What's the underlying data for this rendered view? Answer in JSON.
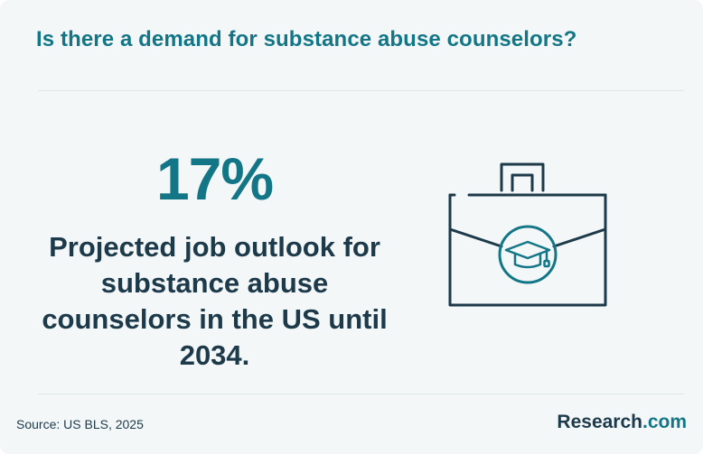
{
  "header": {
    "title": "Is there a demand for substance abuse counselors?"
  },
  "stat": {
    "value": "17%",
    "description": "Projected job outlook for substance abuse counselors in the US until 2034."
  },
  "illustration": {
    "icon": "briefcase-graduation-cap-icon"
  },
  "footer": {
    "source": "Source: US BLS, 2025",
    "logo_name": "Research",
    "logo_tld": ".com"
  },
  "colors": {
    "accent": "#137686",
    "dark": "#1d3a4a",
    "background": "#f3f7f8"
  }
}
